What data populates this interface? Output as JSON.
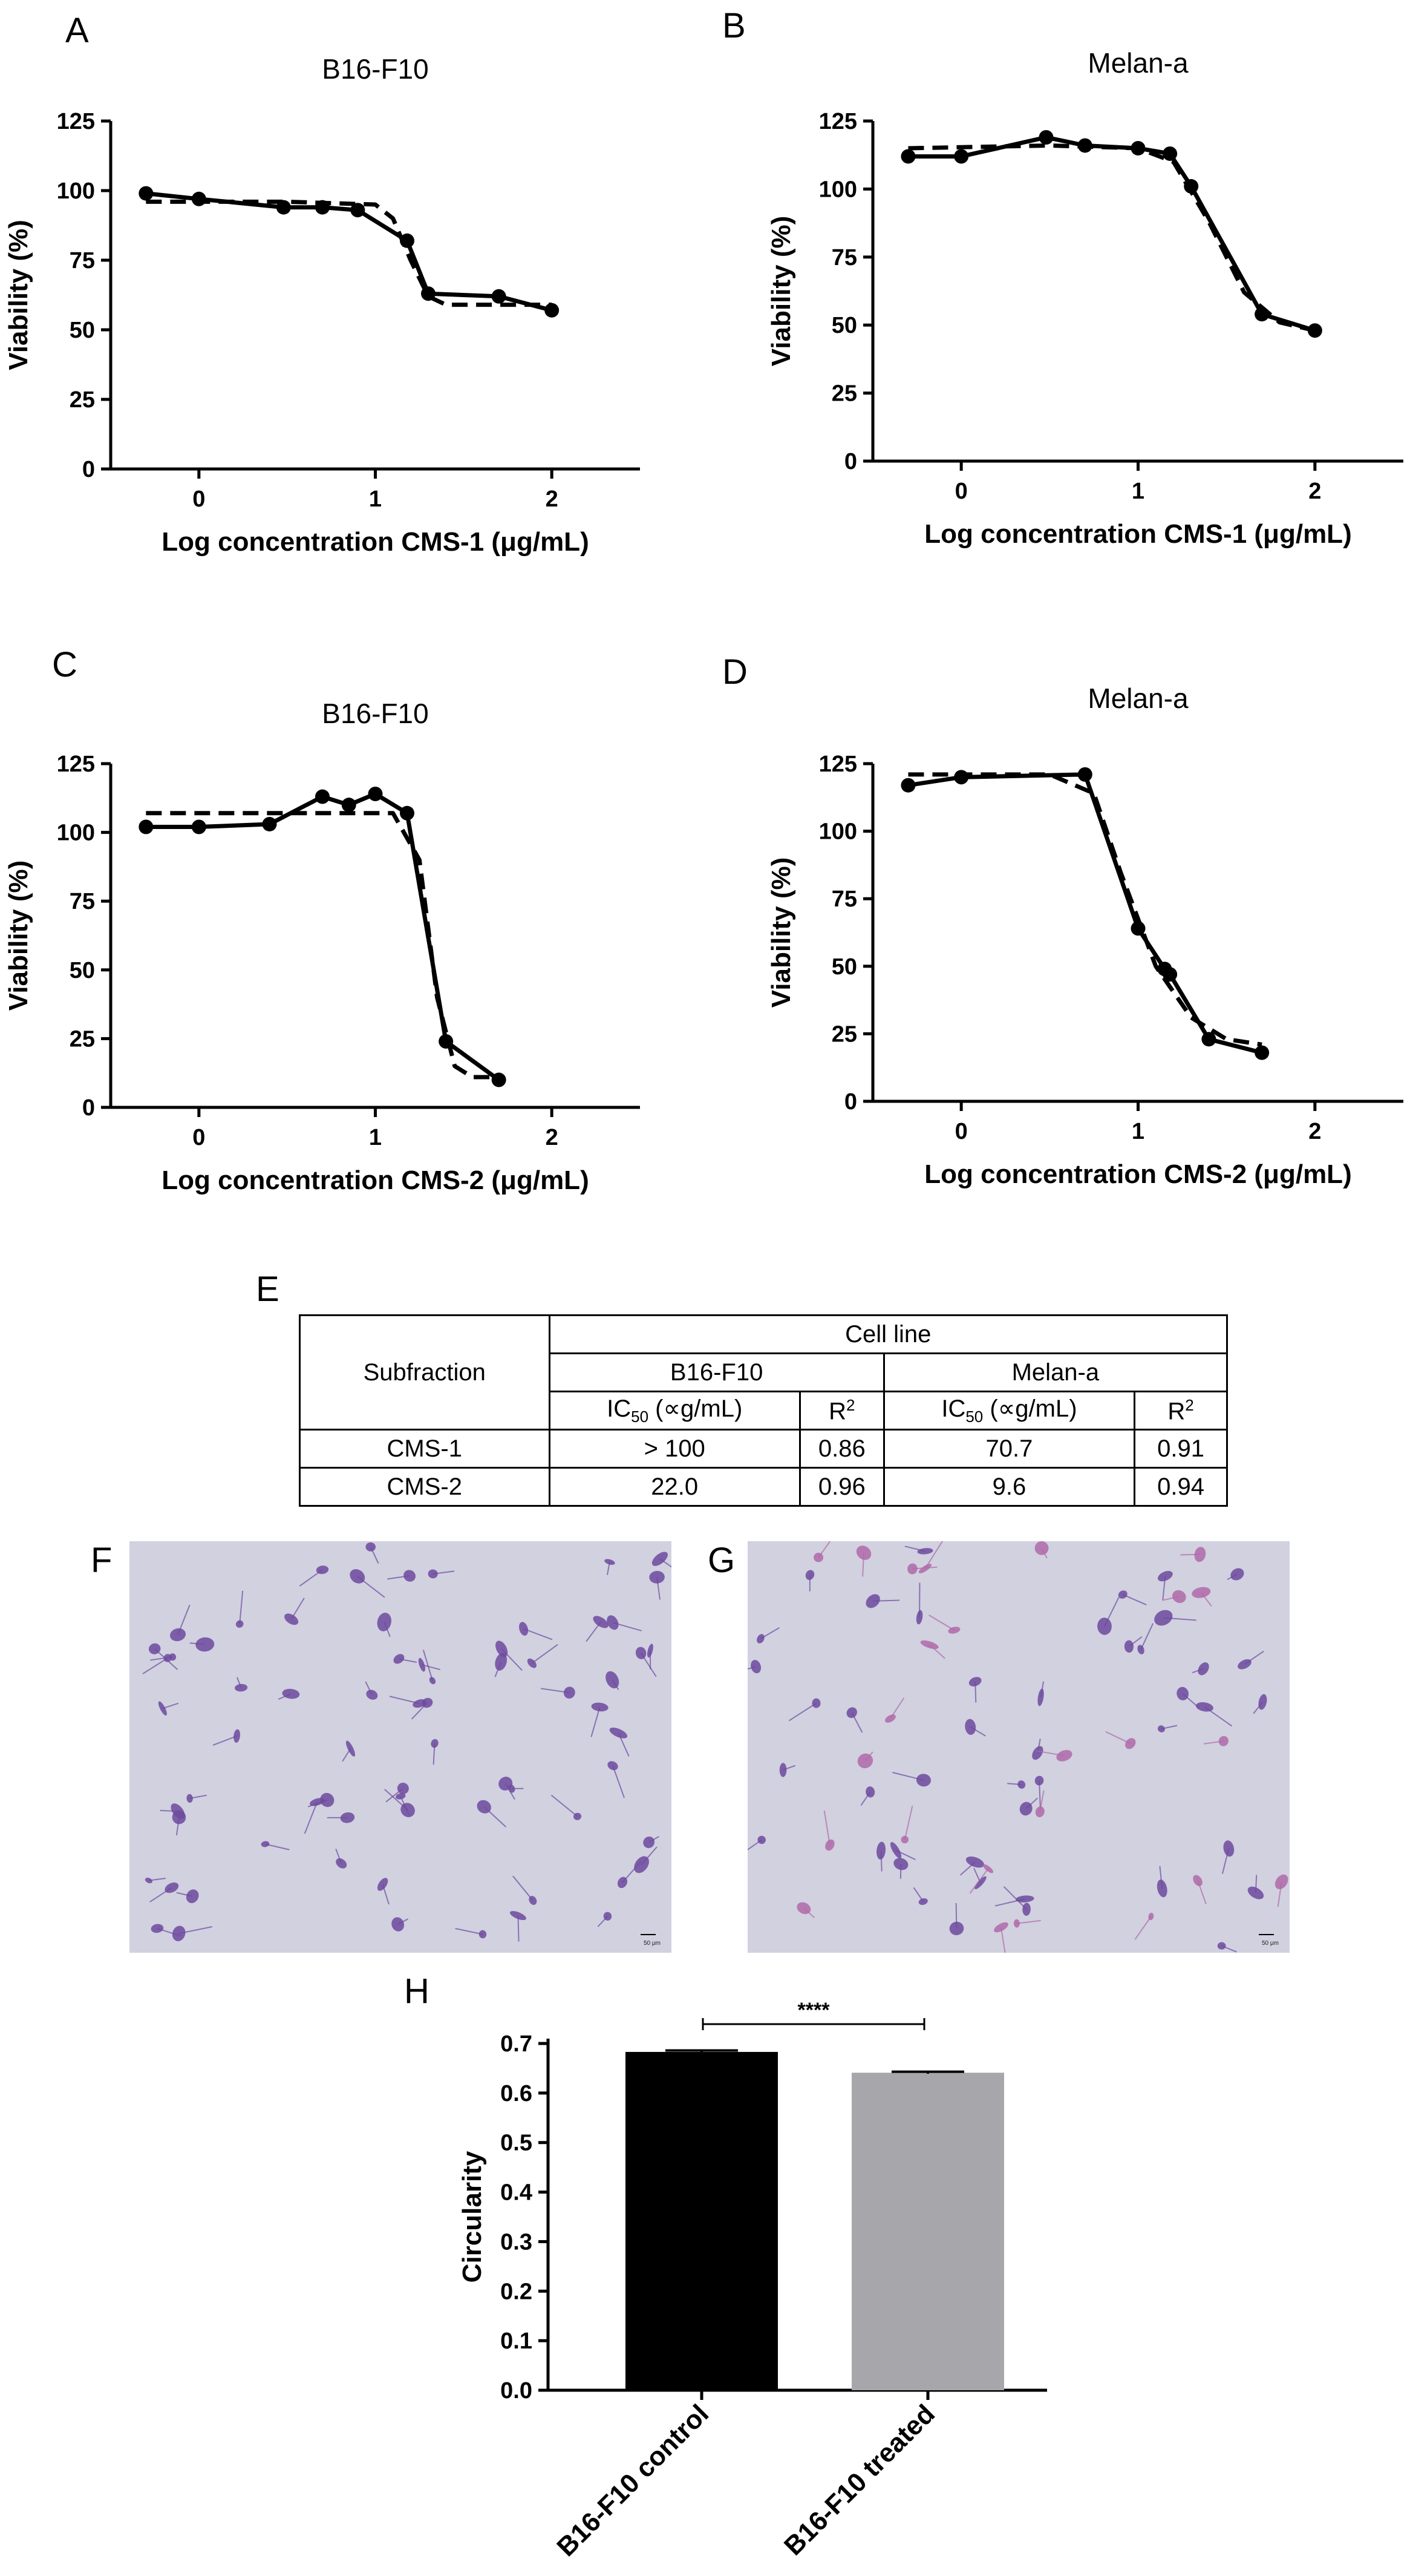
{
  "panels": {
    "a": "A",
    "b": "B",
    "c": "C",
    "d": "D",
    "e": "E",
    "f": "F",
    "g": "G",
    "h": "H"
  },
  "viability_y_label": "Viability (%)",
  "chart_data": [
    {
      "panel": "A",
      "type": "line",
      "title": "B16-F10",
      "xlabel": "Log concentration CMS-1 (μg/mL)",
      "ylabel": "Viability (%)",
      "xlim": [
        -0.5,
        2.5
      ],
      "ylim": [
        0,
        125
      ],
      "xticks": [
        "0",
        "1",
        "2"
      ],
      "yticks": [
        "0",
        "25",
        "50",
        "75",
        "100",
        "125"
      ],
      "series": [
        {
          "style": "solid-with-markers",
          "x": [
            -0.3,
            0,
            0.48,
            0.7,
            0.9,
            1.18,
            1.3,
            1.7,
            2.0
          ],
          "y": [
            99,
            97,
            94,
            94,
            93,
            82,
            63,
            62,
            57
          ]
        },
        {
          "style": "dashed-fit",
          "x": [
            -0.3,
            0.5,
            1.0,
            1.1,
            1.2,
            1.3,
            1.4,
            2.0
          ],
          "y": [
            96,
            96,
            95,
            90,
            75,
            62,
            59,
            59
          ]
        }
      ]
    },
    {
      "panel": "B",
      "type": "line",
      "title": "Melan-a",
      "xlabel": "Log concentration CMS-1 (μg/mL)",
      "ylabel": "Viability (%)",
      "xlim": [
        -0.5,
        2.5
      ],
      "ylim": [
        0,
        125
      ],
      "xticks": [
        "0",
        "1",
        "2"
      ],
      "yticks": [
        "0",
        "25",
        "50",
        "75",
        "100",
        "125"
      ],
      "series": [
        {
          "style": "solid-with-markers",
          "x": [
            -0.3,
            0,
            0.48,
            0.7,
            1.0,
            1.18,
            1.3,
            1.7,
            2.0
          ],
          "y": [
            112,
            112,
            119,
            116,
            115,
            113,
            101,
            54,
            48
          ]
        },
        {
          "style": "dashed-fit",
          "x": [
            -0.3,
            0.5,
            1.0,
            1.2,
            1.4,
            1.6,
            1.8,
            2.0
          ],
          "y": [
            115,
            116,
            115,
            110,
            88,
            62,
            51,
            48
          ]
        }
      ]
    },
    {
      "panel": "C",
      "type": "line",
      "title": "B16-F10",
      "xlabel": "Log concentration CMS-2 (μg/mL)",
      "ylabel": "Viability (%)",
      "xlim": [
        -0.5,
        2.5
      ],
      "ylim": [
        0,
        125
      ],
      "xticks": [
        "0",
        "1",
        "2"
      ],
      "yticks": [
        "0",
        "25",
        "50",
        "75",
        "100",
        "125"
      ],
      "series": [
        {
          "style": "solid-with-markers",
          "x": [
            -0.3,
            0,
            0.4,
            0.7,
            0.85,
            1.0,
            1.18,
            1.4,
            1.7
          ],
          "y": [
            102,
            102,
            103,
            113,
            110,
            114,
            107,
            24,
            10
          ]
        },
        {
          "style": "dashed-fit",
          "x": [
            -0.3,
            0.9,
            1.1,
            1.25,
            1.35,
            1.45,
            1.55,
            1.7
          ],
          "y": [
            107,
            107,
            107,
            90,
            40,
            15,
            11,
            11
          ]
        }
      ]
    },
    {
      "panel": "D",
      "type": "line",
      "title": "Melan-a",
      "xlabel": "Log concentration CMS-2 (μg/mL)",
      "ylabel": "Viability (%)",
      "xlim": [
        -0.5,
        2.5
      ],
      "ylim": [
        0,
        125
      ],
      "xticks": [
        "0",
        "1",
        "2"
      ],
      "yticks": [
        "0",
        "25",
        "50",
        "75",
        "100",
        "125"
      ],
      "series": [
        {
          "style": "solid-with-markers",
          "x": [
            -0.3,
            0,
            0.7,
            1.0,
            1.15,
            1.18,
            1.4,
            1.7
          ],
          "y": [
            117,
            120,
            121,
            64,
            49,
            47,
            23,
            18
          ]
        },
        {
          "style": "dashed-fit",
          "x": [
            -0.3,
            0.5,
            0.75,
            0.9,
            1.1,
            1.3,
            1.5,
            1.7
          ],
          "y": [
            121,
            121,
            114,
            85,
            50,
            31,
            23,
            21
          ]
        }
      ]
    },
    {
      "panel": "H",
      "type": "bar",
      "categories": [
        "B16-F10 control",
        "B16-F10 treated"
      ],
      "values": [
        0.683,
        0.641
      ],
      "errors": [
        0.003,
        0.002
      ],
      "colors": [
        "#000000",
        "#a6a6ab"
      ],
      "ylabel": "Circularity",
      "ylim": [
        0,
        0.7
      ],
      "yticks": [
        "0.0",
        "0.1",
        "0.2",
        "0.3",
        "0.4",
        "0.5",
        "0.6",
        "0.7"
      ],
      "significance": "****"
    }
  ],
  "table": {
    "subfraction_header": "Subfraction",
    "cell_line_header": "Cell line",
    "b16_header": "B16-F10",
    "melan_header": "Melan-a",
    "ic50_header": "IC",
    "ic50_sub": "50",
    "ic50_unit": " (∝g/mL)",
    "r2_header": "R",
    "r2_sup": "2",
    "rows": [
      {
        "name": "CMS-1",
        "b16_ic50": "> 100",
        "b16_r2": "0.86",
        "melan_ic50": "70.7",
        "melan_r2": "0.91"
      },
      {
        "name": "CMS-2",
        "b16_ic50": "22.0",
        "b16_r2": "0.96",
        "melan_ic50": "9.6",
        "melan_r2": "0.94"
      }
    ]
  },
  "micrographs": {
    "control_scale": "50 μm",
    "treated_scale": "50 μm",
    "background_color": "#bfc2d6",
    "cell_color": "#6d4a9e"
  }
}
